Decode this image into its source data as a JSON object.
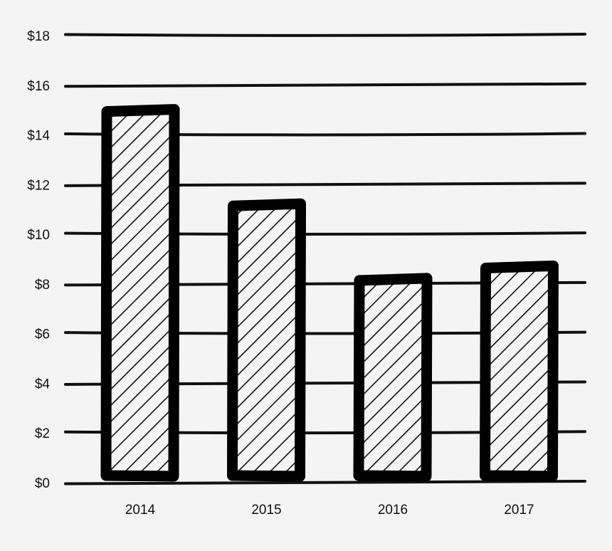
{
  "chart_data": {
    "type": "bar",
    "categories": [
      "2014",
      "2015",
      "2016",
      "2017"
    ],
    "values": [
      15,
      11.2,
      8.2,
      8.7
    ],
    "y_ticks": [
      "$0",
      "$2",
      "$4",
      "$6",
      "$8",
      "$10",
      "$12",
      "$14",
      "$16",
      "$18"
    ],
    "ylim": [
      0,
      18
    ],
    "title": "",
    "xlabel": "",
    "ylabel": "",
    "grid": true,
    "style": "hand-drawn, hatched bars",
    "colors": {
      "background": "#f4f4f4",
      "ink": "#000000"
    }
  }
}
